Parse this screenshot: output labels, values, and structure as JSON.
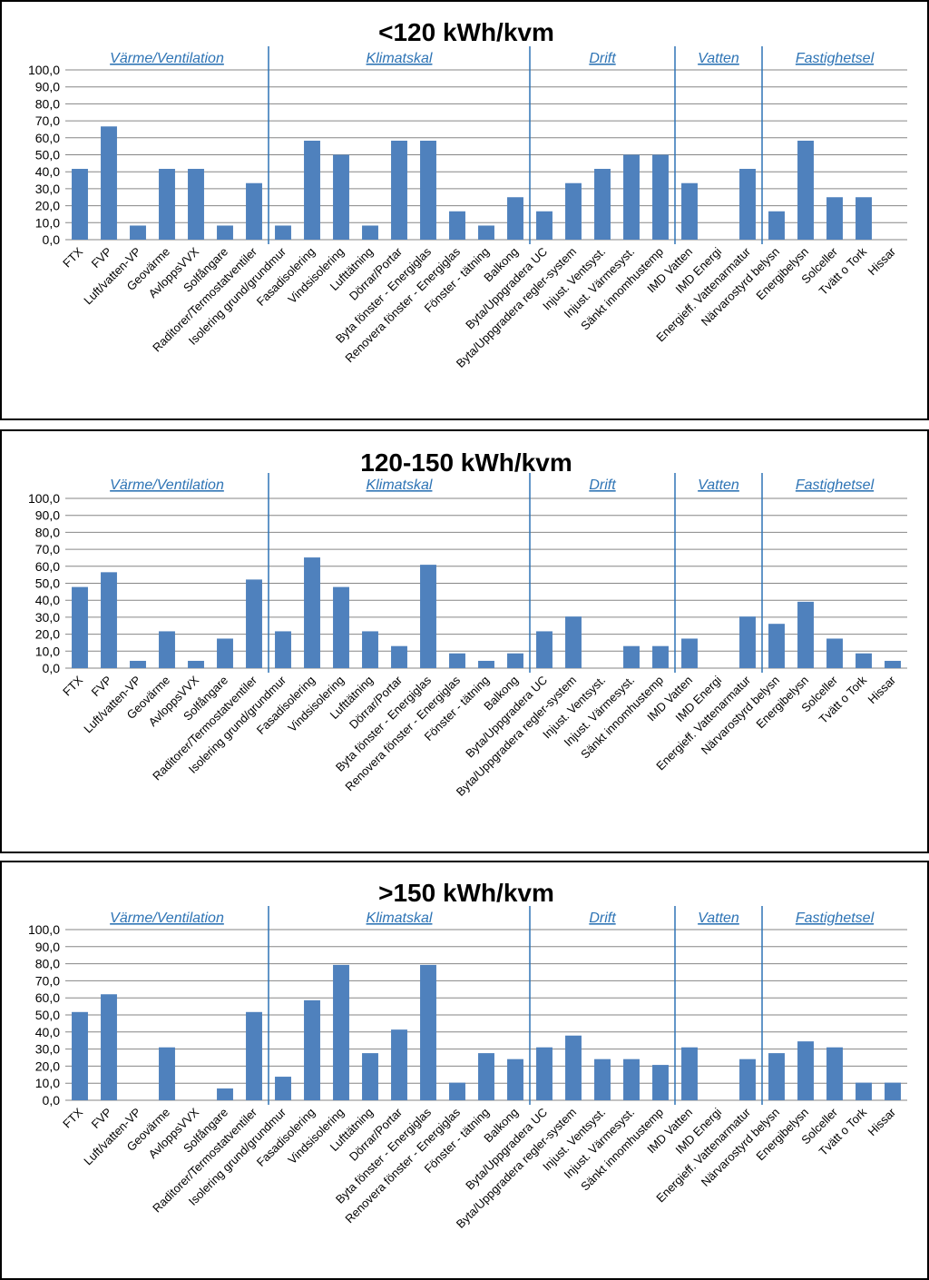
{
  "chart_data": [
    {
      "type": "bar",
      "title": "<120 kWh/kvm",
      "ylim": [
        0,
        100
      ],
      "yticks": [
        "0,0",
        "10,0",
        "20,0",
        "30,0",
        "40,0",
        "50,0",
        "60,0",
        "70,0",
        "80,0",
        "90,0",
        "100,0"
      ],
      "grid": true,
      "categories": [
        "FTX",
        "FVP",
        "Luft/vatten-VP",
        "Geovärme",
        "AvloppsVVX",
        "Solfångare",
        "Raditorer/Termostatventiler",
        "Isolering grund/grundmur",
        "Fasadisolering",
        "Vindsisolering",
        "Lufttätning",
        "Dörrar/Portar",
        "Byta fönster - Energiglas",
        "Renovera fönster - Energiglas",
        "Fönster - tätning",
        "Balkong",
        "Byta/Uppgradera UC",
        "Byta/Uppgradera regler-system",
        "Injust. Ventsyst.",
        "Injust. Värmesyst.",
        "Sänkt innomhustemp",
        "IMD Vatten",
        "IMD Energi",
        "Energieff. Vattenarmatur",
        "Närvarostyrd belysn",
        "Energibelysn",
        "Solceller",
        "Tvätt o Tork",
        "Hissar"
      ],
      "values": [
        41.7,
        66.7,
        8.3,
        41.7,
        41.7,
        8.3,
        33.3,
        8.3,
        58.3,
        50.0,
        8.3,
        58.3,
        58.3,
        16.7,
        8.3,
        25.0,
        16.7,
        33.3,
        41.7,
        50.0,
        50.0,
        33.3,
        0,
        41.7,
        16.7,
        58.3,
        25.0,
        25.0,
        0
      ],
      "groups": [
        {
          "label": "Värme/Ventilation",
          "start": 0,
          "end": 6
        },
        {
          "label": "Klimatskal",
          "start": 7,
          "end": 15
        },
        {
          "label": "Drift",
          "start": 16,
          "end": 20
        },
        {
          "label": "Vatten",
          "start": 21,
          "end": 23
        },
        {
          "label": "Fastighetsel",
          "start": 24,
          "end": 28
        }
      ]
    },
    {
      "type": "bar",
      "title": "120-150 kWh/kvm",
      "ylim": [
        0,
        100
      ],
      "yticks": [
        "0,0",
        "10,0",
        "20,0",
        "30,0",
        "40,0",
        "50,0",
        "60,0",
        "70,0",
        "80,0",
        "90,0",
        "100,0"
      ],
      "grid": true,
      "categories": [
        "FTX",
        "FVP",
        "Luft/vatten-VP",
        "Geovärme",
        "AvloppsVVX",
        "Solfångare",
        "Raditorer/Termostatventiler",
        "Isolering grund/grundmur",
        "Fasadisolering",
        "Vindsisolering",
        "Lufttätning",
        "Dörrar/Portar",
        "Byta fönster - Energiglas",
        "Renovera fönster - Energiglas",
        "Fönster - tätning",
        "Balkong",
        "Byta/Uppgradera UC",
        "Byta/Uppgradera regler-system",
        "Injust. Ventsyst.",
        "Injust. Värmesyst.",
        "Sänkt innomhustemp",
        "IMD Vatten",
        "IMD Energi",
        "Energieff. Vattenarmatur",
        "Närvarostyrd belysn",
        "Energibelysn",
        "Solceller",
        "Tvätt o Tork",
        "Hissar"
      ],
      "values": [
        47.8,
        56.5,
        4.3,
        21.7,
        4.3,
        17.4,
        52.2,
        21.7,
        65.2,
        47.8,
        21.7,
        13.0,
        60.9,
        8.7,
        4.3,
        8.7,
        21.7,
        30.4,
        0,
        13.0,
        13.0,
        17.4,
        0,
        30.4,
        26.1,
        39.1,
        17.4,
        8.7,
        4.3
      ],
      "groups": [
        {
          "label": "Värme/Ventilation",
          "start": 0,
          "end": 6
        },
        {
          "label": "Klimatskal",
          "start": 7,
          "end": 15
        },
        {
          "label": "Drift",
          "start": 16,
          "end": 20
        },
        {
          "label": "Vatten",
          "start": 21,
          "end": 23
        },
        {
          "label": "Fastighetsel",
          "start": 24,
          "end": 28
        }
      ]
    },
    {
      "type": "bar",
      "title": ">150 kWh/kvm",
      "ylim": [
        0,
        100
      ],
      "yticks": [
        "0,0",
        "10,0",
        "20,0",
        "30,0",
        "40,0",
        "50,0",
        "60,0",
        "70,0",
        "80,0",
        "90,0",
        "100,0"
      ],
      "grid": true,
      "categories": [
        "FTX",
        "FVP",
        "Luft/vatten-VP",
        "Geovärme",
        "AvloppsVVX",
        "Solfångare",
        "Raditorer/Termostatventiler",
        "Isolering grund/grundmur",
        "Fasadisolering",
        "Vindsisolering",
        "Lufttätning",
        "Dörrar/Portar",
        "Byta fönster - Energiglas",
        "Renovera fönster - Energiglas",
        "Fönster - tätning",
        "Balkong",
        "Byta/Uppgradera UC",
        "Byta/Uppgradera regler-system",
        "Injust. Ventsyst.",
        "Injust. Värmesyst.",
        "Sänkt innomhustemp",
        "IMD Vatten",
        "IMD Energi",
        "Energieff. Vattenarmatur",
        "Närvarostyrd belysn",
        "Energibelysn",
        "Solceller",
        "Tvätt o Tork",
        "Hissar"
      ],
      "values": [
        51.7,
        62.1,
        0,
        31.0,
        0,
        6.9,
        51.7,
        13.8,
        58.6,
        79.3,
        27.6,
        41.4,
        79.3,
        10.3,
        27.6,
        24.1,
        31.0,
        37.9,
        24.1,
        24.1,
        20.7,
        31.0,
        0,
        24.1,
        27.6,
        34.5,
        31.0,
        10.3,
        10.3
      ],
      "groups": [
        {
          "label": "Värme/Ventilation",
          "start": 0,
          "end": 6
        },
        {
          "label": "Klimatskal",
          "start": 7,
          "end": 15
        },
        {
          "label": "Drift",
          "start": 16,
          "end": 20
        },
        {
          "label": "Vatten",
          "start": 21,
          "end": 23
        },
        {
          "label": "Fastighetsel",
          "start": 24,
          "end": 28
        }
      ]
    }
  ]
}
